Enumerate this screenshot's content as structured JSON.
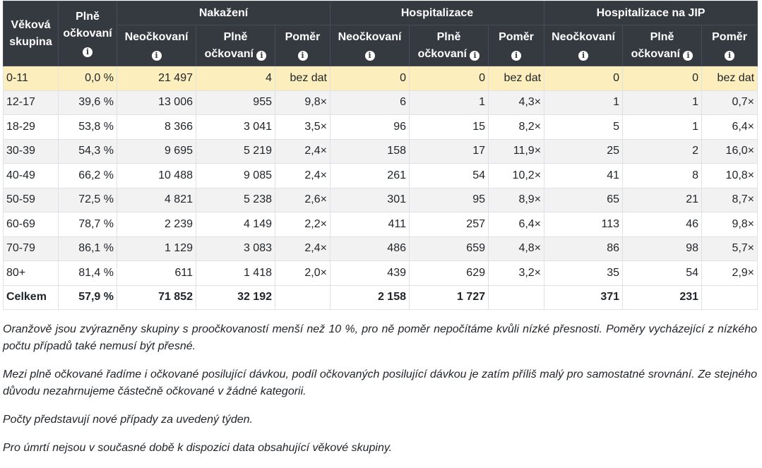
{
  "headers": {
    "age_group": "Věková skupina",
    "fully_vaccinated": "Plně očkovaní",
    "groups": [
      "Nakažení",
      "Hospitalizace",
      "Hospitalizace na JIP"
    ],
    "unvaccinated": "Neočkovaní",
    "vaccinated": "Plně očkovaní",
    "ratio": "Poměr",
    "info_icon": "info-circle-icon"
  },
  "rows": [
    {
      "age": "0-11",
      "vacc": "0,0 %",
      "inf_u": "21 497",
      "inf_v": "4",
      "inf_r": "bez dat",
      "hosp_u": "0",
      "hosp_v": "0",
      "hosp_r": "bez dat",
      "icu_u": "0",
      "icu_v": "0",
      "icu_r": "bez dat",
      "highlight": true
    },
    {
      "age": "12-17",
      "vacc": "39,6 %",
      "inf_u": "13 006",
      "inf_v": "955",
      "inf_r": "9,8×",
      "hosp_u": "6",
      "hosp_v": "1",
      "hosp_r": "4,3×",
      "icu_u": "1",
      "icu_v": "1",
      "icu_r": "0,7×"
    },
    {
      "age": "18-29",
      "vacc": "53,8 %",
      "inf_u": "8 366",
      "inf_v": "3 041",
      "inf_r": "3,5×",
      "hosp_u": "96",
      "hosp_v": "15",
      "hosp_r": "8,2×",
      "icu_u": "5",
      "icu_v": "1",
      "icu_r": "6,4×"
    },
    {
      "age": "30-39",
      "vacc": "54,3 %",
      "inf_u": "9 695",
      "inf_v": "5 219",
      "inf_r": "2,4×",
      "hosp_u": "158",
      "hosp_v": "17",
      "hosp_r": "11,9×",
      "icu_u": "25",
      "icu_v": "2",
      "icu_r": "16,0×"
    },
    {
      "age": "40-49",
      "vacc": "66,2 %",
      "inf_u": "10 488",
      "inf_v": "9 085",
      "inf_r": "2,4×",
      "hosp_u": "261",
      "hosp_v": "54",
      "hosp_r": "10,2×",
      "icu_u": "41",
      "icu_v": "8",
      "icu_r": "10,8×"
    },
    {
      "age": "50-59",
      "vacc": "72,5 %",
      "inf_u": "4 821",
      "inf_v": "5 238",
      "inf_r": "2,6×",
      "hosp_u": "301",
      "hosp_v": "95",
      "hosp_r": "8,9×",
      "icu_u": "65",
      "icu_v": "21",
      "icu_r": "8,7×"
    },
    {
      "age": "60-69",
      "vacc": "78,7 %",
      "inf_u": "2 239",
      "inf_v": "4 149",
      "inf_r": "2,2×",
      "hosp_u": "411",
      "hosp_v": "257",
      "hosp_r": "6,4×",
      "icu_u": "113",
      "icu_v": "46",
      "icu_r": "9,8×"
    },
    {
      "age": "70-79",
      "vacc": "86,1 %",
      "inf_u": "1 129",
      "inf_v": "3 083",
      "inf_r": "2,4×",
      "hosp_u": "486",
      "hosp_v": "659",
      "hosp_r": "4,8×",
      "icu_u": "86",
      "icu_v": "98",
      "icu_r": "5,7×"
    },
    {
      "age": "80+",
      "vacc": "81,4 %",
      "inf_u": "611",
      "inf_v": "1 418",
      "inf_r": "2,0×",
      "hosp_u": "439",
      "hosp_v": "629",
      "hosp_r": "3,2×",
      "icu_u": "35",
      "icu_v": "54",
      "icu_r": "2,9×"
    }
  ],
  "total": {
    "age": "Celkem",
    "vacc": "57,9 %",
    "inf_u": "71 852",
    "inf_v": "32 192",
    "inf_r": "",
    "hosp_u": "2 158",
    "hosp_v": "1 727",
    "hosp_r": "",
    "icu_u": "371",
    "icu_v": "231",
    "icu_r": ""
  },
  "notes": [
    "Oranžově jsou zvýrazněny skupiny s proočkovaností menší než 10 %, pro ně poměr nepočítáme kvůli nízké přesnosti. Poměry vycházející z nízkého počtu případů také nemusí být přesné.",
    "Mezi plně očkované řadíme i očkované posilující dávkou, podíl očkovaných posilující dávkou je zatím příliš malý pro samostatné srovnání. Ze stejného důvodu nezahrnujeme částečně očkované v žádné kategorii.",
    "Počty představují nové případy za uvedený týden.",
    "Pro úmrtí nejsou v současné době k dispozici data obsahující věkové skupiny."
  ],
  "colors": {
    "header_bg": "#343a40",
    "highlight_bg": "#fdeebe",
    "stripe_bg": "#f2f2f2"
  }
}
